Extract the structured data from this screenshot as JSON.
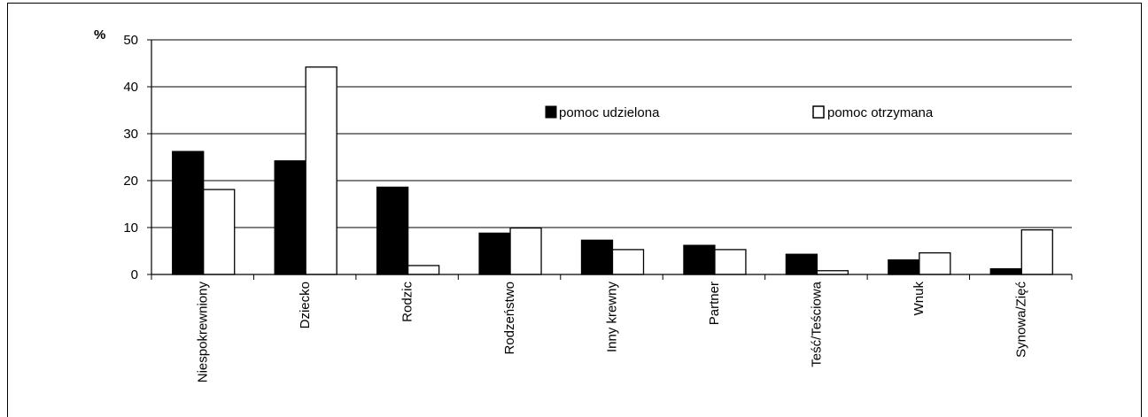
{
  "chart_data": {
    "type": "bar",
    "ylabel": "%",
    "ylim": [
      0,
      50
    ],
    "yticks": [
      0,
      10,
      20,
      30,
      40,
      50
    ],
    "grid": true,
    "legend_position": "top-right",
    "categories": [
      "Niespokrewniony",
      "Dziecko",
      "Rodzic",
      "Rodzeństwo",
      "Inny krewny",
      "Partner",
      "Teść/Teściowa",
      "Wnuk",
      "Synowa/Zięć"
    ],
    "series": [
      {
        "name": "pomoc udzielona",
        "color": "#000000",
        "values": [
          26.2,
          24.2,
          18.6,
          8.8,
          7.3,
          6.2,
          4.3,
          3.1,
          1.2
        ]
      },
      {
        "name": "pomoc otrzymana",
        "color": "#ffffff",
        "values": [
          18.1,
          44.2,
          1.9,
          9.9,
          5.3,
          5.3,
          0.8,
          4.6,
          9.5
        ]
      }
    ]
  }
}
